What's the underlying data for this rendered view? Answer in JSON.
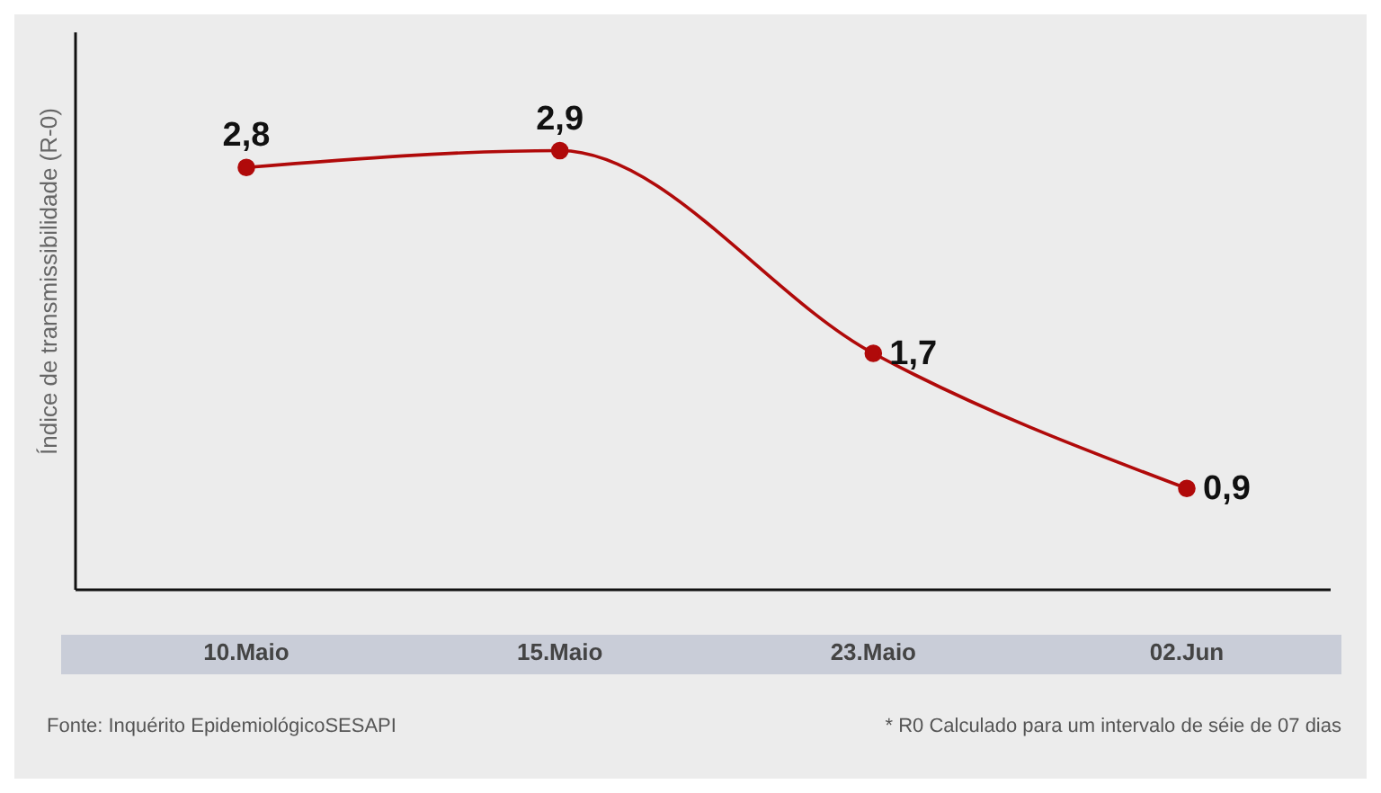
{
  "chart_data": {
    "type": "line",
    "ylabel": "Índice de transmissibilidade (R-0)",
    "categories": [
      "10.Maio",
      "15.Maio",
      "23.Maio",
      "02.Jun"
    ],
    "series": [
      {
        "color": "#b00a0a",
        "values": [
          2.8,
          2.9,
          1.7,
          0.9
        ],
        "value_labels": [
          "2,8",
          "2,9",
          "1,7",
          "0,9"
        ]
      }
    ],
    "ylim": [
      0.3,
      3.6
    ],
    "tick_labels": "x",
    "marker": "circle",
    "line_style": "solid",
    "grid": false,
    "legend": false,
    "annotations": [
      "Fonte: Inquérito EpidemiológicoSESAPI",
      "* R0 Calculado para um intervalo de séie de 07 dias"
    ]
  }
}
